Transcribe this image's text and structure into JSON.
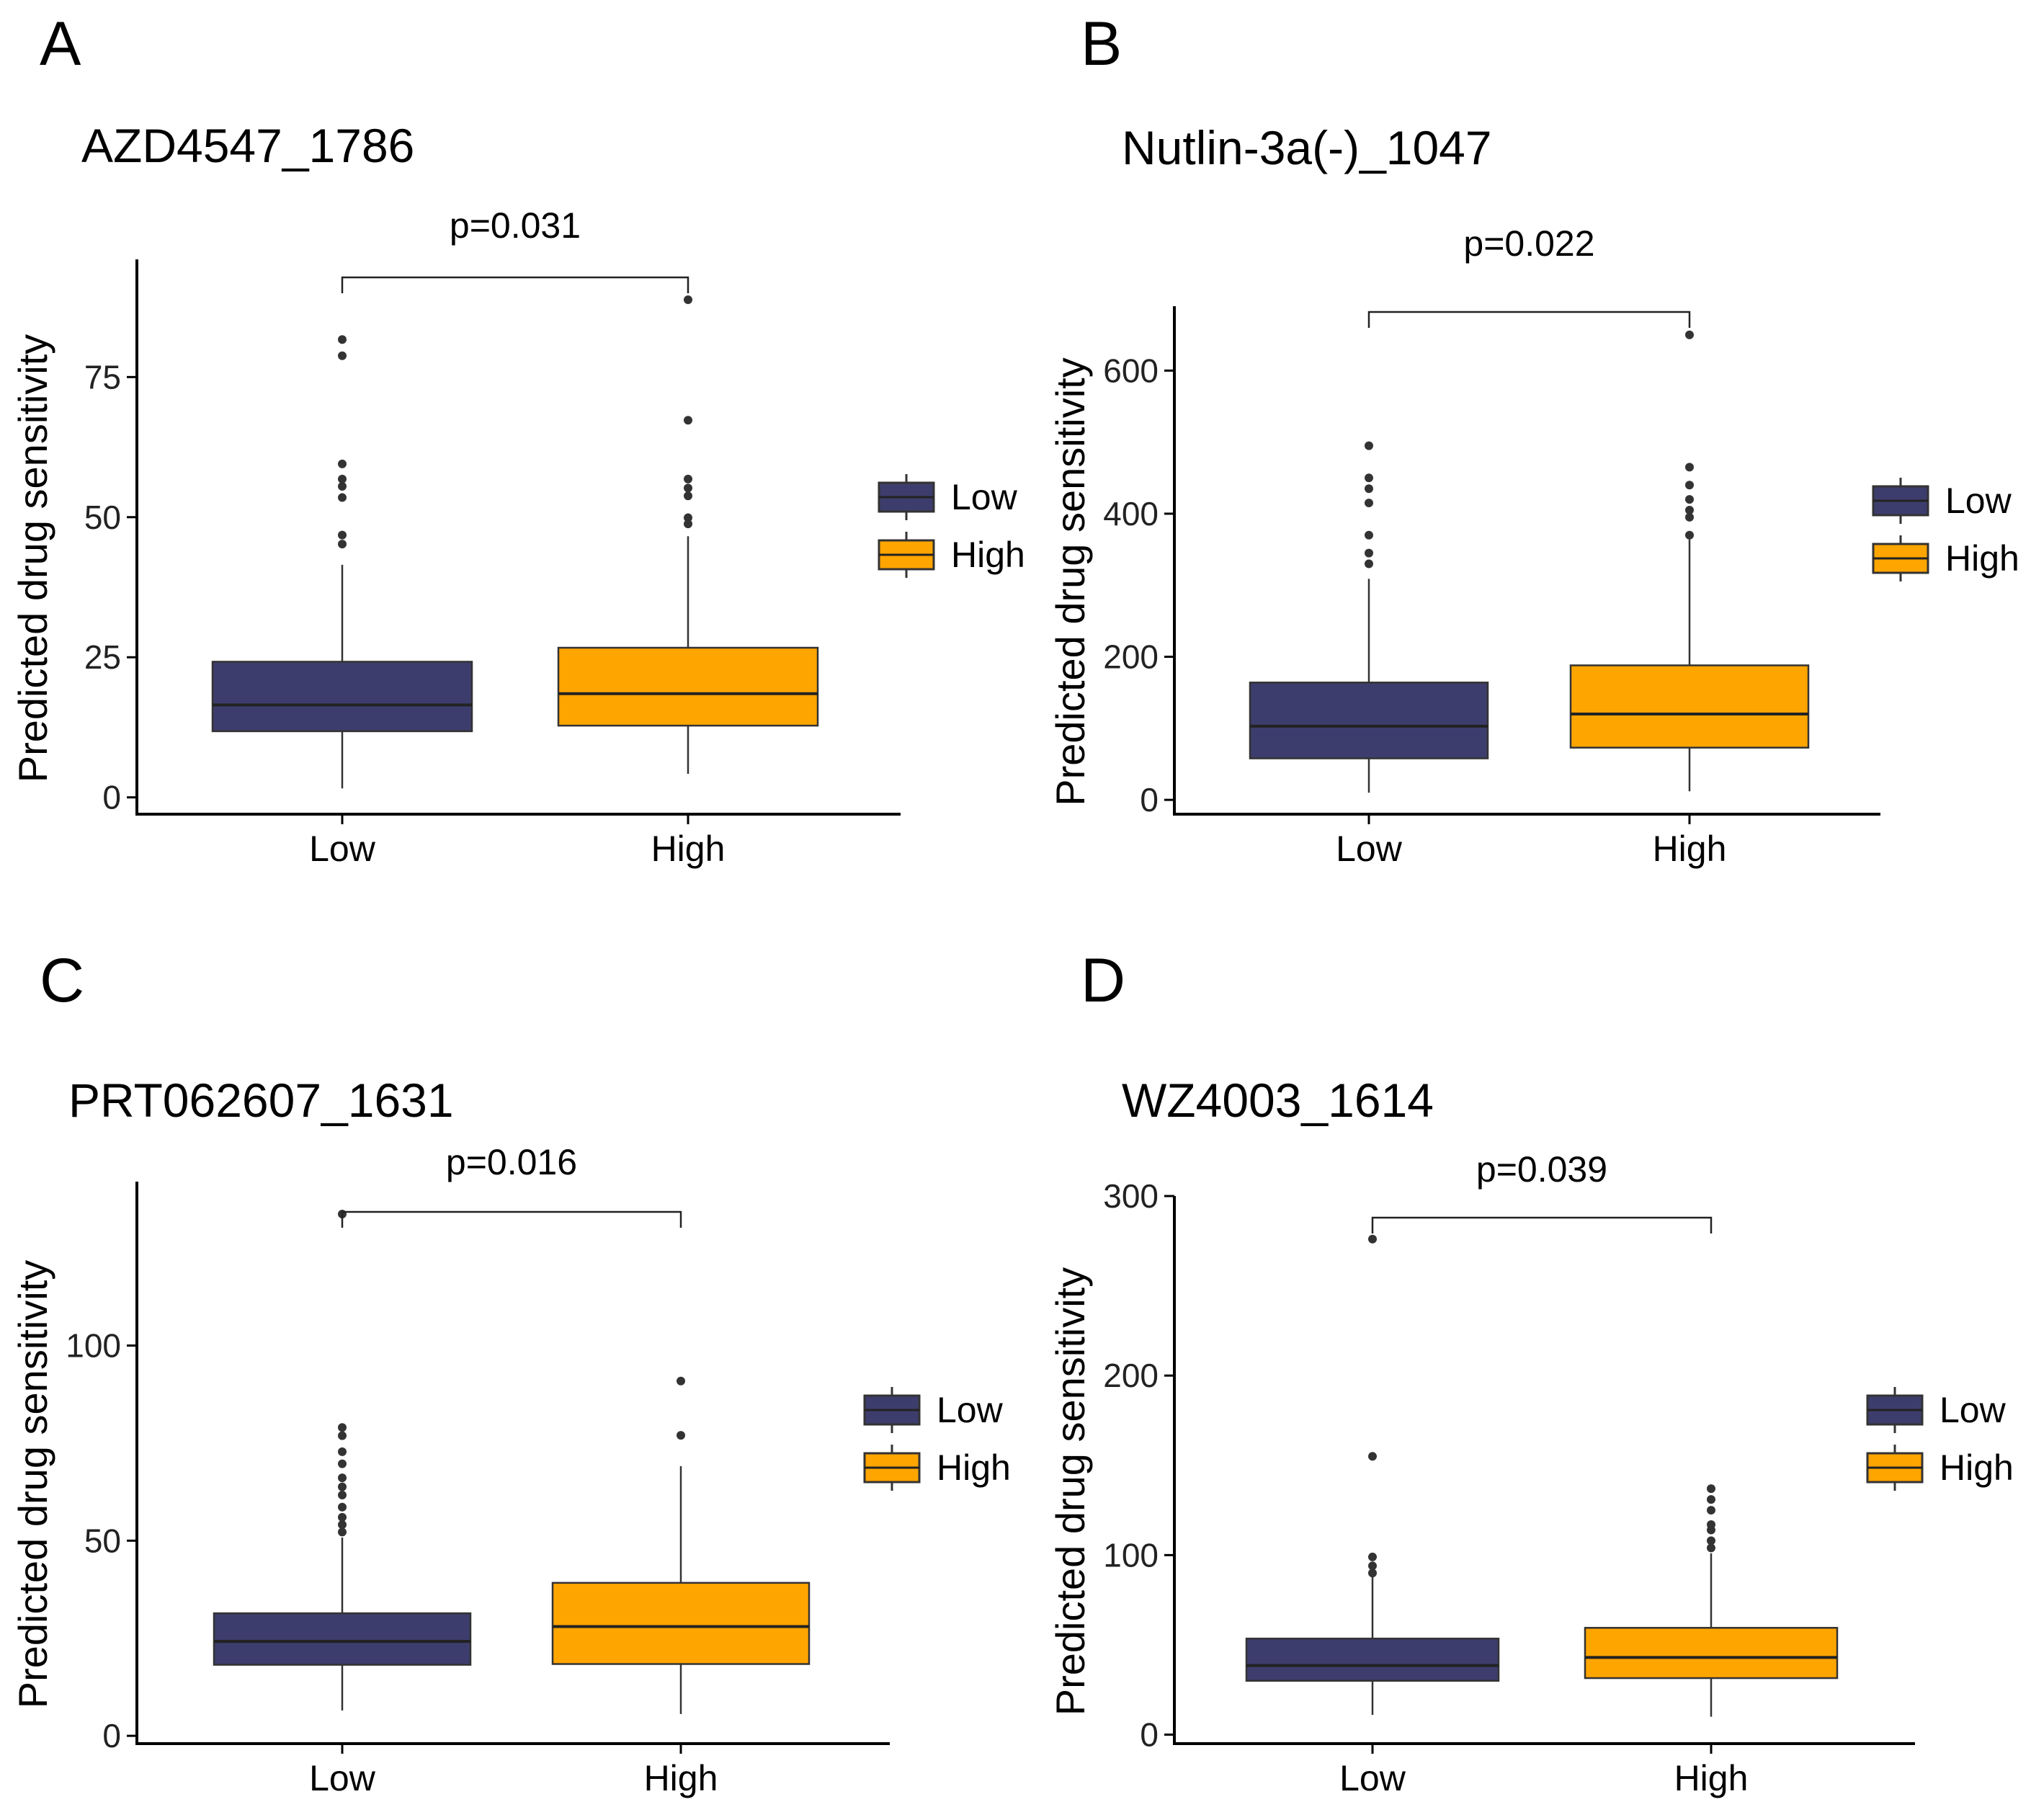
{
  "figure": {
    "colors": {
      "low": "#3d3d6d",
      "high": "#ffa500",
      "box_outline": "#333333",
      "axis": "#000000",
      "text": "#000000",
      "outlier": "#333333"
    }
  },
  "chart_data": [
    {
      "type": "box",
      "panel_letter": "A",
      "title": "AZD4547_1786",
      "ylabel": "Predicted drug sensitivity",
      "xlabel": "",
      "categories": [
        "Low",
        "High"
      ],
      "yticks": [
        0,
        25,
        50,
        75
      ],
      "ylim": [
        -3,
        96
      ],
      "p_value_label": "p=0.031",
      "legend": {
        "position": "right",
        "entries": [
          "Low",
          "High"
        ]
      },
      "grid": false,
      "boxes": [
        {
          "group": "Low",
          "whisker_low": 1.6,
          "q1": 11.8,
          "median": 16.5,
          "q3": 24.2,
          "whisker_high": 41.5,
          "outliers": [
            45.2,
            46.8,
            53.5,
            55.5,
            56.8,
            59.5,
            78.8,
            81.7
          ]
        },
        {
          "group": "High",
          "whisker_low": 4.2,
          "q1": 12.8,
          "median": 18.5,
          "q3": 26.7,
          "whisker_high": 46.6,
          "outliers": [
            48.8,
            49.9,
            53.8,
            55.2,
            56.8,
            67.3,
            88.8
          ]
        }
      ]
    },
    {
      "type": "box",
      "panel_letter": "B",
      "title": "Nutlin-3a(-)_1047",
      "ylabel": "Predicted drug sensitivity",
      "xlabel": "",
      "categories": [
        "Low",
        "High"
      ],
      "yticks": [
        0,
        200,
        400,
        600
      ],
      "ylim": [
        -20,
        690
      ],
      "p_value_label": "p=0.022",
      "legend": {
        "position": "right",
        "entries": [
          "Low",
          "High"
        ]
      },
      "grid": false,
      "boxes": [
        {
          "group": "Low",
          "whisker_low": 10,
          "q1": 58,
          "median": 103,
          "q3": 164,
          "whisker_high": 309,
          "outliers": [
            330,
            345,
            370,
            415,
            435,
            450,
            495
          ]
        },
        {
          "group": "High",
          "whisker_low": 12,
          "q1": 73,
          "median": 120,
          "q3": 188,
          "whisker_high": 364,
          "outliers": [
            370,
            395,
            405,
            420,
            440,
            465,
            650
          ]
        }
      ]
    },
    {
      "type": "box",
      "panel_letter": "C",
      "title": "PRT062607_1631",
      "ylabel": "Predicted drug sensitivity",
      "xlabel": "",
      "categories": [
        "Low",
        "High"
      ],
      "yticks": [
        0,
        50,
        100
      ],
      "ylim": [
        -2,
        142
      ],
      "p_value_label": "p=0.016",
      "legend": {
        "position": "right",
        "entries": [
          "Low",
          "High"
        ]
      },
      "grid": false,
      "boxes": [
        {
          "group": "Low",
          "whisker_low": 6.5,
          "q1": 18.2,
          "median": 24.2,
          "q3": 31.4,
          "whisker_high": 50.8,
          "outliers": [
            52.2,
            54.1,
            56.0,
            58.6,
            61.7,
            63.8,
            66.1,
            69.7,
            72.8,
            76.9,
            79.0,
            133.7
          ]
        },
        {
          "group": "High",
          "whisker_low": 5.6,
          "q1": 18.4,
          "median": 28.0,
          "q3": 39.2,
          "whisker_high": 69.1,
          "outliers": [
            77.0,
            90.9
          ]
        }
      ]
    },
    {
      "type": "box",
      "panel_letter": "D",
      "title": "WZ4003_1614",
      "ylabel": "Predicted drug sensitivity",
      "xlabel": "",
      "categories": [
        "Low",
        "High"
      ],
      "yticks": [
        0,
        100,
        200,
        300
      ],
      "ylim": [
        -5,
        300
      ],
      "p_value_label": "p=0.039",
      "legend": {
        "position": "right",
        "entries": [
          "Low",
          "High"
        ]
      },
      "grid": false,
      "boxes": [
        {
          "group": "Low",
          "whisker_low": 11,
          "q1": 30,
          "median": 38.5,
          "q3": 53.5,
          "whisker_high": 88,
          "outliers": [
            90,
            94,
            99,
            155,
            276
          ]
        },
        {
          "group": "High",
          "whisker_low": 10,
          "q1": 31.5,
          "median": 43,
          "q3": 59.5,
          "whisker_high": 101,
          "outliers": [
            104,
            108,
            114,
            117,
            125,
            131,
            137
          ]
        }
      ]
    }
  ]
}
